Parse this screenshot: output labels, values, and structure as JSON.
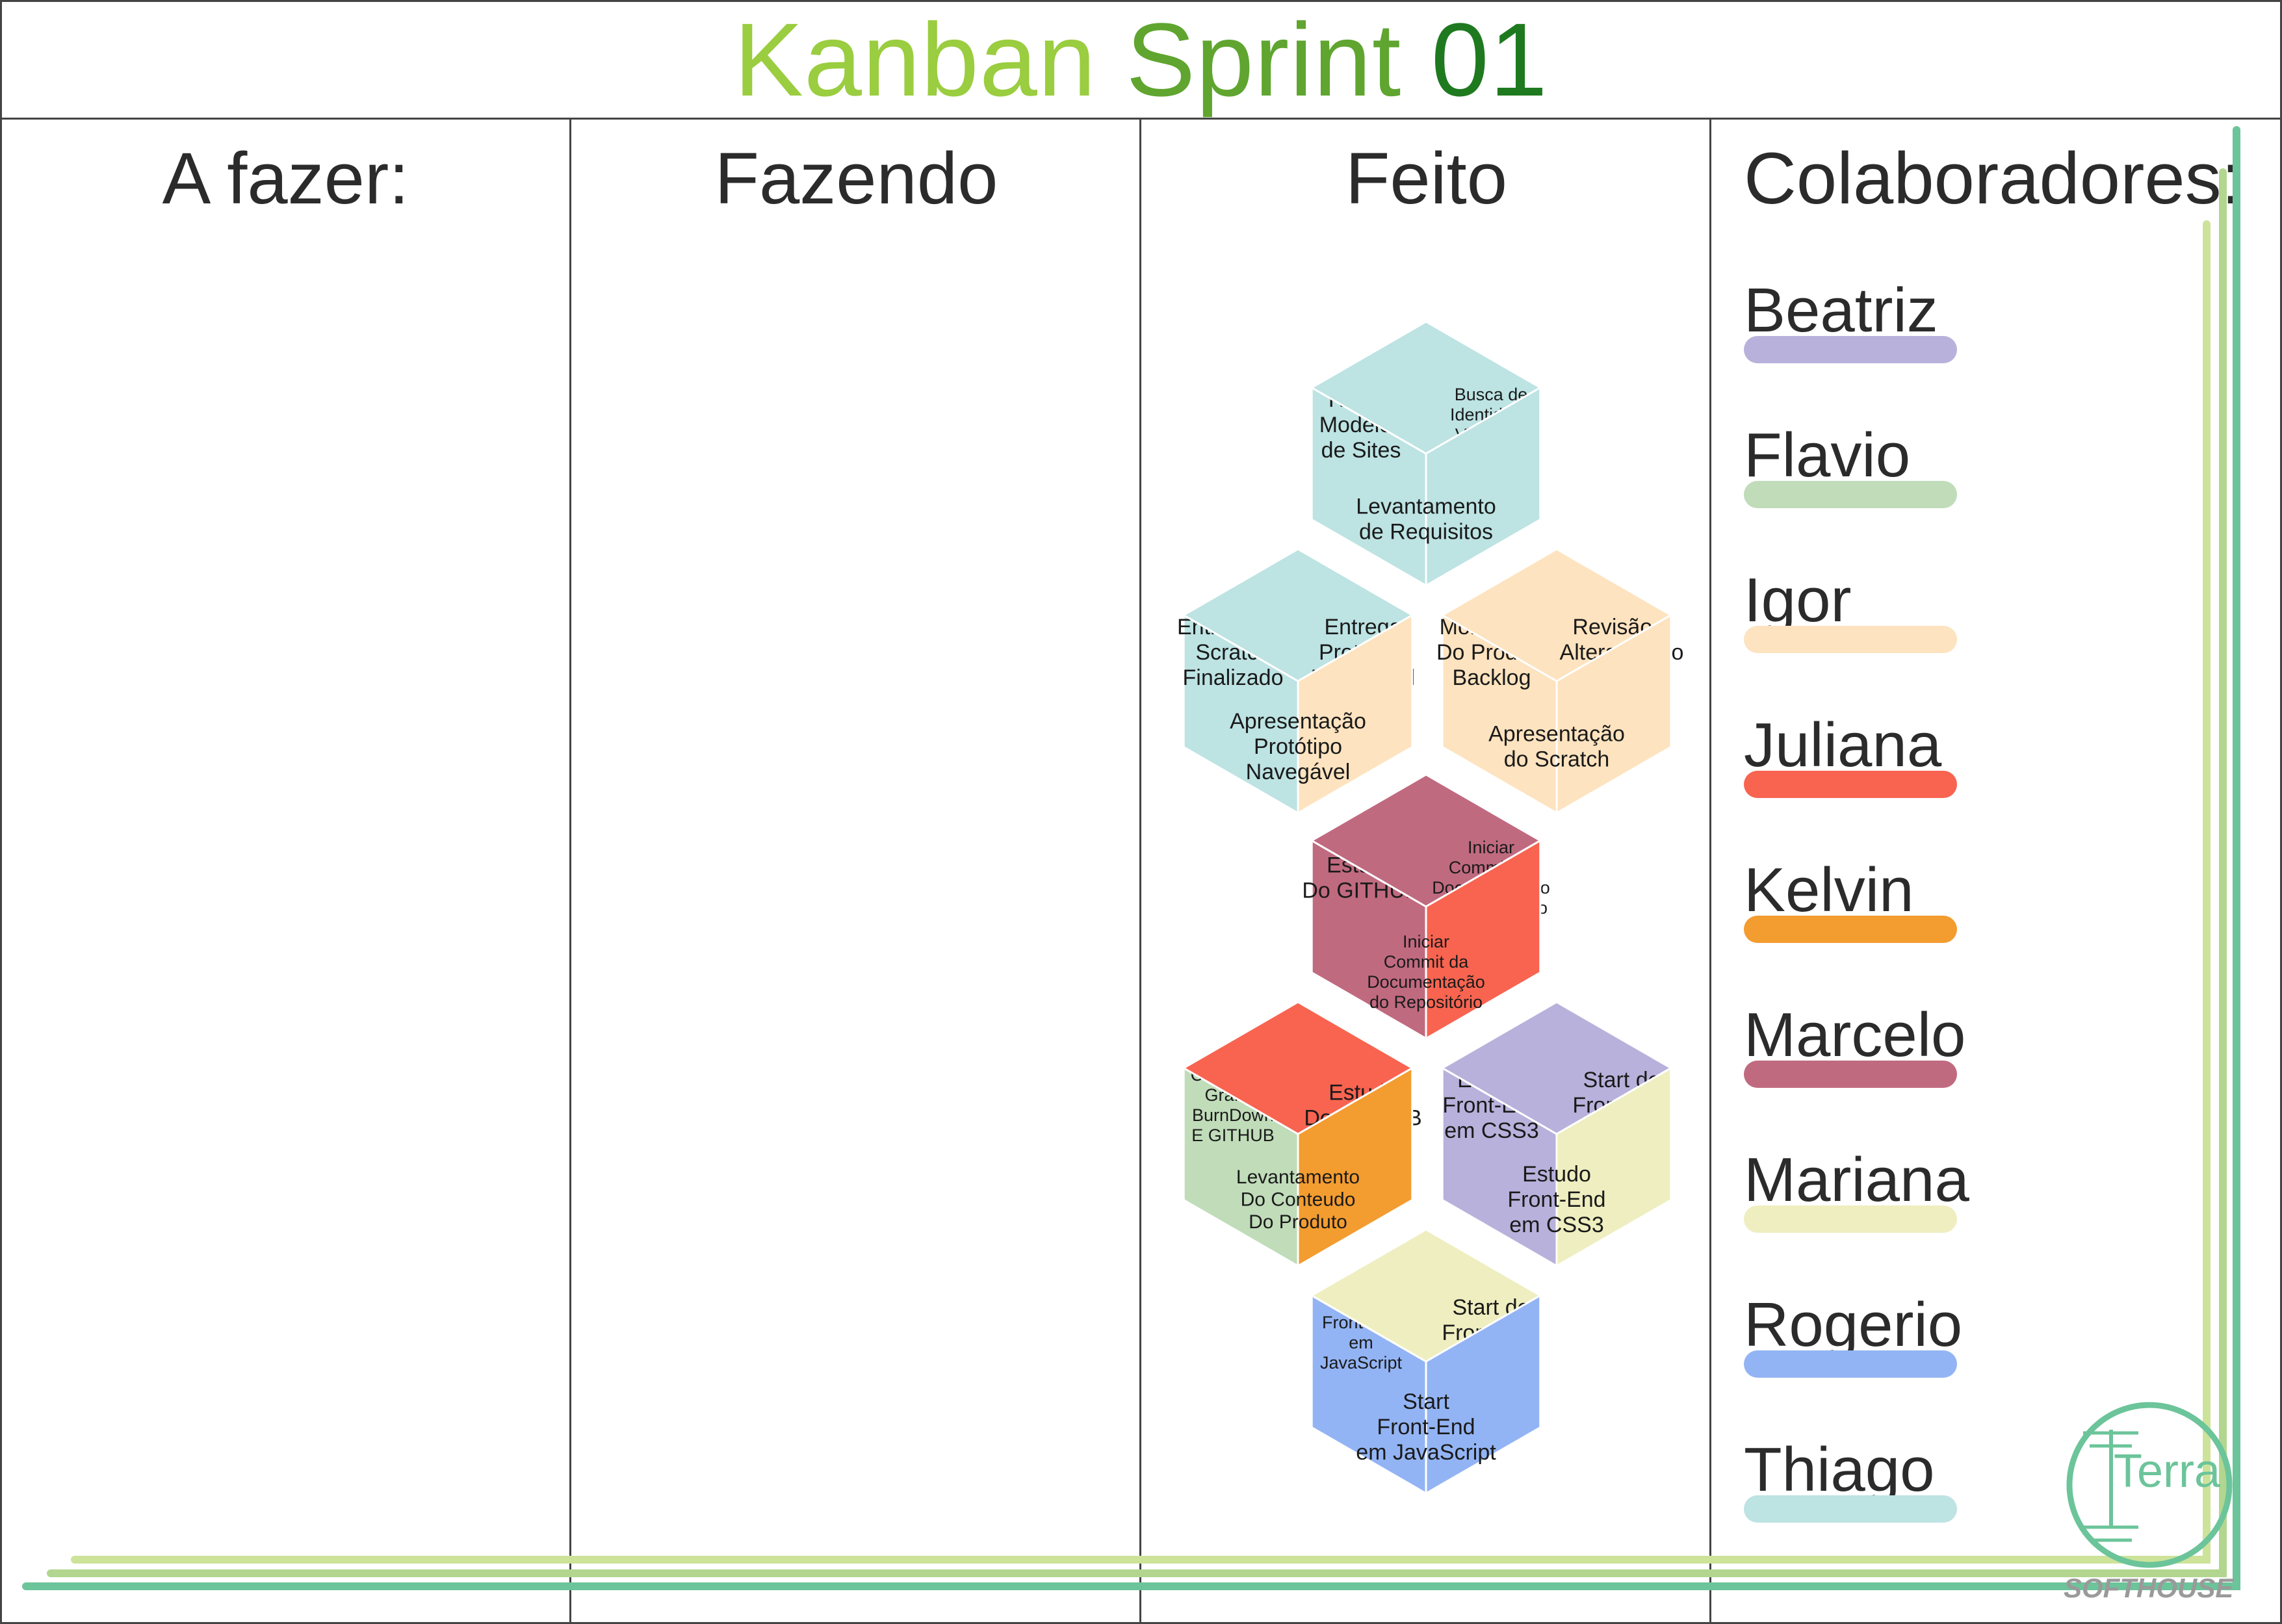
{
  "title": {
    "part1": "Kanban",
    "part2": "Sprint",
    "part3": "01"
  },
  "columns": [
    "A fazer:",
    "Fazendo",
    "Feito",
    "Colaboradores:"
  ],
  "collaborators": [
    {
      "name": "Beatriz",
      "color": "#b8b1db"
    },
    {
      "name": "Flavio",
      "color": "#c0dcb9"
    },
    {
      "name": "Igor",
      "color": "#fde3bf"
    },
    {
      "name": "Juliana",
      "color": "#f86450"
    },
    {
      "name": "Kelvin",
      "color": "#f39c30"
    },
    {
      "name": "Marcelo",
      "color": "#c06a80"
    },
    {
      "name": "Mariana",
      "color": "#eeeec0"
    },
    {
      "name": "Rogerio",
      "color": "#93b4f4"
    },
    {
      "name": "Thiago",
      "color": "#bde3e3"
    }
  ],
  "done_tasks": [
    {
      "hex": 0,
      "pos": "left",
      "text": "Reunir\nModelos\nde Sites",
      "color": "#bde3e3"
    },
    {
      "hex": 0,
      "pos": "right",
      "text": "Busca de\nIdentidade\nVisual do\nSite",
      "color": "#bde3e3"
    },
    {
      "hex": 0,
      "pos": "bottom",
      "text": "Levantamento\nde Requisitos",
      "color": "#bde3e3"
    },
    {
      "hex": 1,
      "pos": "left",
      "text": "Entrega Do\nScratch\nFinalizado",
      "color": "#bde3e3"
    },
    {
      "hex": 1,
      "pos": "right",
      "text": "Entrega\nProtótipo\nNavegável",
      "color": "#bde3e3"
    },
    {
      "hex": 1,
      "pos": "bottom",
      "text": "Apresentação\nProtótipo\nNavegável",
      "color": "#fde3bf"
    },
    {
      "hex": 2,
      "pos": "left",
      "text": "Montagem\nDo  Product\nBacklog",
      "color": "#fde3bf"
    },
    {
      "hex": 2,
      "pos": "right",
      "text": "Revisão e\nAlteração do\nScratch",
      "color": "#fde3bf"
    },
    {
      "hex": 2,
      "pos": "bottom",
      "text": "Apresentação\ndo Scratch",
      "color": "#fde3bf"
    },
    {
      "hex": 3,
      "pos": "left",
      "text": "Estudo\nDo GITHUB",
      "color": "#c06a80"
    },
    {
      "hex": 3,
      "pos": "right",
      "text": "Iniciar\nCommit da\nDocumentação\ndo Repositório",
      "color": "#c06a80"
    },
    {
      "hex": 3,
      "pos": "bottom",
      "text": "Iniciar\nCommit da\nDocumentação\ndo Repositório",
      "color": "#f86450"
    },
    {
      "hex": 4,
      "pos": "left",
      "text": "Criação do\nGrafico\nBurnDown\nE GITHUB",
      "color": "#c0dcb9"
    },
    {
      "hex": 4,
      "pos": "right",
      "text": "Estudo\nDo GITHUB",
      "color": "#f86450"
    },
    {
      "hex": 4,
      "pos": "bottom",
      "text": "Levantamento\nDo Conteudo\nDo Produto",
      "color": "#f39c30"
    },
    {
      "hex": 5,
      "pos": "left",
      "text": "Estudo\nFront-End\nem CSS3",
      "color": "#b8b1db"
    },
    {
      "hex": 5,
      "pos": "right",
      "text": "Start do\nFront-End\nem CSS3",
      "color": "#b8b1db"
    },
    {
      "hex": 5,
      "pos": "bottom",
      "text": "Estudo\nFront-End\nem CSS3",
      "color": "#eeeec0"
    },
    {
      "hex": 6,
      "pos": "left",
      "text": "Estudo\nFront-End\nem\nJavaScript",
      "color": "#93b4f4"
    },
    {
      "hex": 6,
      "pos": "right",
      "text": "Start do\nFront-End\nem CSS3",
      "color": "#eeeec0"
    },
    {
      "hex": 6,
      "pos": "bottom",
      "text": "Start\nFront-End\nem JavaScript",
      "color": "#93b4f4"
    }
  ],
  "logo": {
    "text": "Terra",
    "caption": "SOFTHOUSE",
    "color": "#6cc49a"
  },
  "deco_colors": [
    "#cde39a",
    "#b2d68f",
    "#6cc49a"
  ]
}
